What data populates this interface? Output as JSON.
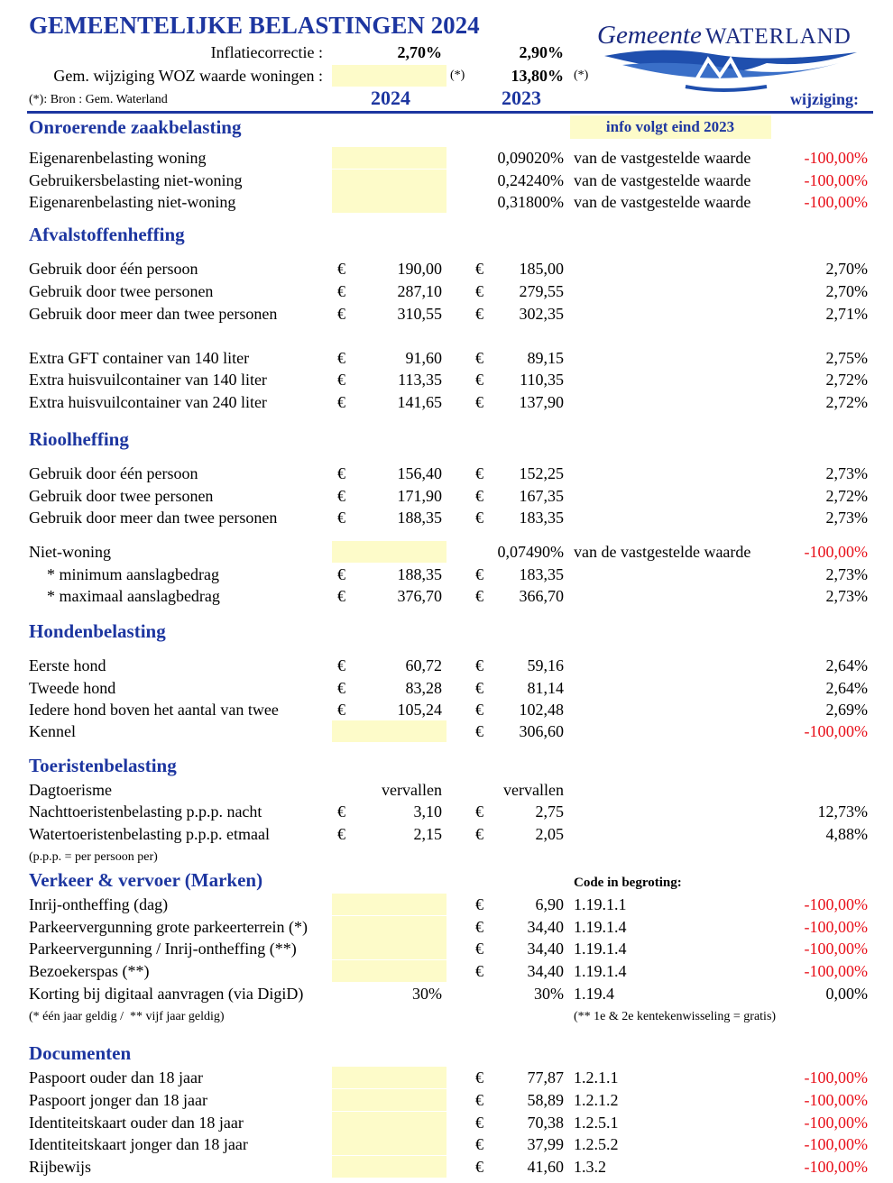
{
  "header": {
    "title": "GEMEENTELIJKE BELASTINGEN 2024",
    "logo": {
      "word1": "Gemeente",
      "word2": "WATERLAND"
    },
    "inflation": {
      "label": "Inflatiecorrectie :",
      "v2024": "2,70%",
      "v2023": "2,90%"
    },
    "woz": {
      "label": "Gem. wijziging WOZ waarde woningen :",
      "mark2024": "(*)",
      "v2023": "13,80%",
      "mark2023": "(*)"
    },
    "source": "(*): Bron : Gem. Waterland",
    "col2024": "2024",
    "col2023": "2023",
    "colChange": "wijziging:"
  },
  "sections": [
    {
      "title": "Onroerende zaakbelasting",
      "extra": "info volgt eind 2023",
      "extraBox": true,
      "rows": [
        {
          "label": "Eigenarenbelasting woning",
          "highlight": true,
          "v2023": "0,09020%",
          "note": "van de vastgestelde waarde",
          "change": "-100,00%"
        },
        {
          "label": "Gebruikersbelasting niet-woning",
          "highlight": true,
          "v2023": "0,24240%",
          "note": "van de vastgestelde waarde",
          "change": "-100,00%"
        },
        {
          "label": "Eigenarenbelasting niet-woning",
          "highlight": true,
          "v2023": "0,31800%",
          "note": "van de vastgestelde waarde",
          "change": "-100,00%"
        }
      ]
    },
    {
      "title": "Afvalstoffenheffing",
      "rows": [
        {
          "label": "Gebruik door één persoon",
          "cur2024": "€",
          "v2024": "190,00",
          "cur2023": "€",
          "v2023": "185,00",
          "change": "2,70%"
        },
        {
          "label": "Gebruik door twee personen",
          "cur2024": "€",
          "v2024": "287,10",
          "cur2023": "€",
          "v2023": "279,55",
          "change": "2,70%"
        },
        {
          "label": "Gebruik door meer dan twee personen",
          "cur2024": "€",
          "v2024": "310,55",
          "cur2023": "€",
          "v2023": "302,35",
          "change": "2,71%"
        },
        {
          "label": "Extra GFT container van 140 liter",
          "cur2024": "€",
          "v2024": "91,60",
          "cur2023": "€",
          "v2023": "89,15",
          "change": "2,75%"
        },
        {
          "label": "Extra huisvuilcontainer van 140 liter",
          "cur2024": "€",
          "v2024": "113,35",
          "cur2023": "€",
          "v2023": "110,35",
          "change": "2,72%"
        },
        {
          "label": "Extra huisvuilcontainer van 240 liter",
          "cur2024": "€",
          "v2024": "141,65",
          "cur2023": "€",
          "v2023": "137,90",
          "change": "2,72%"
        }
      ]
    },
    {
      "title": "Rioolheffing",
      "rows": [
        {
          "label": "Gebruik door één persoon",
          "cur2024": "€",
          "v2024": "156,40",
          "cur2023": "€",
          "v2023": "152,25",
          "change": "2,73%"
        },
        {
          "label": "Gebruik door twee personen",
          "cur2024": "€",
          "v2024": "171,90",
          "cur2023": "€",
          "v2023": "167,35",
          "change": "2,72%"
        },
        {
          "label": "Gebruik door meer dan twee personen",
          "cur2024": "€",
          "v2024": "188,35",
          "cur2023": "€",
          "v2023": "183,35",
          "change": "2,73%"
        },
        {
          "label": "Niet-woning",
          "highlight": true,
          "v2023": "0,07490%",
          "note": "van de vastgestelde waarde",
          "change": "-100,00%"
        },
        {
          "label": "* minimum aanslagbedrag",
          "indent": true,
          "cur2024": "€",
          "v2024": "188,35",
          "cur2023": "€",
          "v2023": "183,35",
          "change": "2,73%"
        },
        {
          "label": "* maximaal aanslagbedrag",
          "indent": true,
          "cur2024": "€",
          "v2024": "376,70",
          "cur2023": "€",
          "v2023": "366,70",
          "change": "2,73%"
        }
      ]
    },
    {
      "title": "Hondenbelasting",
      "rows": [
        {
          "label": "Eerste hond",
          "cur2024": "€",
          "v2024": "60,72",
          "cur2023": "€",
          "v2023": "59,16",
          "change": "2,64%"
        },
        {
          "label": "Tweede hond",
          "cur2024": "€",
          "v2024": "83,28",
          "cur2023": "€",
          "v2023": "81,14",
          "change": "2,64%"
        },
        {
          "label": "Iedere hond boven het aantal van twee",
          "cur2024": "€",
          "v2024": "105,24",
          "cur2023": "€",
          "v2023": "102,48",
          "change": "2,69%"
        },
        {
          "label": "Kennel",
          "highlight": true,
          "cur2023": "€",
          "v2023": "306,60",
          "change": "-100,00%"
        }
      ]
    },
    {
      "title": "Toeristenbelasting",
      "rows": [
        {
          "label": "Dagtoerisme",
          "v2024": "vervallen",
          "v2023": "vervallen"
        },
        {
          "label": "Nachttoeristenbelasting p.p.p. nacht",
          "cur2024": "€",
          "v2024": "3,10",
          "cur2023": "€",
          "v2023": "2,75",
          "change": "12,73%"
        },
        {
          "label": "Watertoeristenbelasting p.p.p. etmaal",
          "cur2024": "€",
          "v2024": "2,15",
          "cur2023": "€",
          "v2023": "2,05",
          "change": "4,88%"
        }
      ],
      "footnotes": [
        "(p.p.p. = per persoon per)"
      ]
    },
    {
      "title": "Verkeer & vervoer (Marken)",
      "extra": "Code in begroting:",
      "rows": [
        {
          "label": "Inrij-ontheffing (dag)",
          "highlight": true,
          "cur2023": "€",
          "v2023": "6,90",
          "note": "1.19.1.1",
          "change": "-100,00%"
        },
        {
          "label": "Parkeervergunning grote parkeerterrein (*)",
          "highlight": true,
          "cur2023": "€",
          "v2023": "34,40",
          "note": "1.19.1.4",
          "change": "-100,00%"
        },
        {
          "label": "Parkeervergunning / Inrij-ontheffing (**)",
          "highlight": true,
          "cur2023": "€",
          "v2023": "34,40",
          "note": "1.19.1.4",
          "change": "-100,00%"
        },
        {
          "label": "Bezoekerspas (**)",
          "highlight": true,
          "cur2023": "€",
          "v2023": "34,40",
          "note": "1.19.1.4",
          "change": "-100,00%"
        },
        {
          "label": "Korting bij digitaal aanvragen (via DigiD)",
          "v2024": "30%",
          "v2023": "30%",
          "note": "1.19.4",
          "change": "0,00%"
        }
      ],
      "footnotes": [
        "(* één jaar geldig /  ** vijf jaar geldig)",
        "(** 1e & 2e kentekenwisseling = gratis)"
      ]
    },
    {
      "title": "Documenten",
      "rows": [
        {
          "label": "Paspoort ouder dan 18 jaar",
          "highlight": true,
          "cur2023": "€",
          "v2023": "77,87",
          "note": "1.2.1.1",
          "change": "-100,00%"
        },
        {
          "label": "Paspoort jonger dan 18 jaar",
          "highlight": true,
          "cur2023": "€",
          "v2023": "58,89",
          "note": "1.2.1.2",
          "change": "-100,00%"
        },
        {
          "label": "Identiteitskaart ouder dan 18 jaar",
          "highlight": true,
          "cur2023": "€",
          "v2023": "70,38",
          "note": "1.2.5.1",
          "change": "-100,00%"
        },
        {
          "label": "Identiteitskaart jonger dan 18 jaar",
          "highlight": true,
          "cur2023": "€",
          "v2023": "37,99",
          "note": "1.2.5.2",
          "change": "-100,00%"
        },
        {
          "label": "Rijbewijs",
          "highlight": true,
          "cur2023": "€",
          "v2023": "41,60",
          "note": "1.3.2",
          "change": "-100,00%"
        }
      ]
    }
  ]
}
